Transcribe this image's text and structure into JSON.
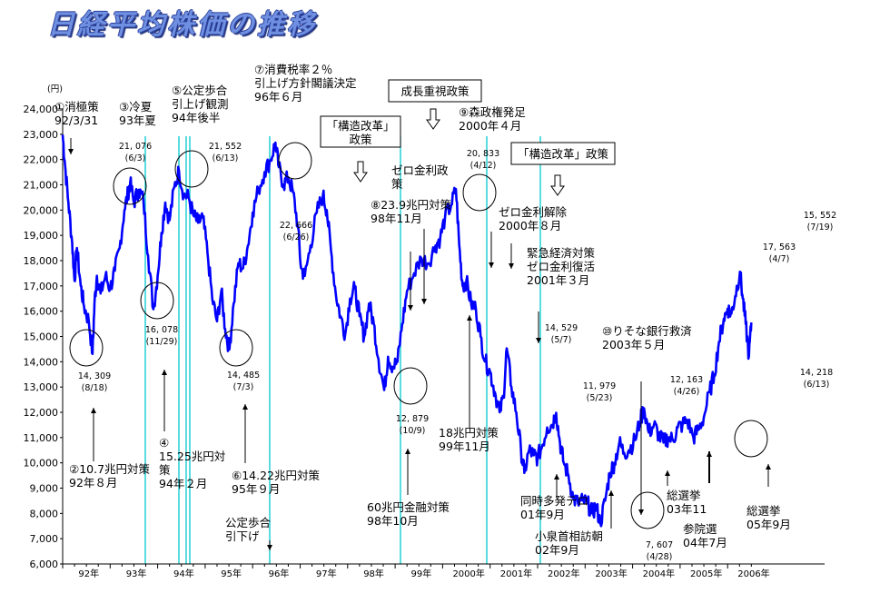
{
  "title": "日経平均株価の推移",
  "chart_data": {
    "type": "line",
    "y_unit": "(円)",
    "ylim": [
      6000,
      24000
    ],
    "y_ticks": [
      "6,000",
      "7,000",
      "8,000",
      "9,000",
      "10,000",
      "11,000",
      "12,000",
      "13,000",
      "14,000",
      "15,000",
      "16,000",
      "17,000",
      "18,000",
      "19,000",
      "20,000",
      "21,000",
      "22,000",
      "23,000",
      "24,000"
    ],
    "x_ticks": [
      "92年",
      "93年",
      "94年",
      "95年",
      "96年",
      "97年",
      "98年",
      "99年",
      "2000年",
      "2001年",
      "2002年",
      "2003年",
      "2004年",
      "2005年",
      "2006年"
    ],
    "line_color": "#0000ff",
    "series": [
      {
        "x": 1992.0,
        "y": 22983
      },
      {
        "x": 1992.05,
        "y": 21800
      },
      {
        "x": 1992.12,
        "y": 20300
      },
      {
        "x": 1992.2,
        "y": 18700
      },
      {
        "x": 1992.25,
        "y": 17200
      },
      {
        "x": 1992.3,
        "y": 18500
      },
      {
        "x": 1992.38,
        "y": 17000
      },
      {
        "x": 1992.45,
        "y": 16200
      },
      {
        "x": 1992.55,
        "y": 15600
      },
      {
        "x": 1992.63,
        "y": 14309
      },
      {
        "x": 1992.67,
        "y": 16300
      },
      {
        "x": 1992.72,
        "y": 17400
      },
      {
        "x": 1992.8,
        "y": 16700
      },
      {
        "x": 1992.9,
        "y": 17400
      },
      {
        "x": 1993.0,
        "y": 16900
      },
      {
        "x": 1993.1,
        "y": 17600
      },
      {
        "x": 1993.2,
        "y": 18500
      },
      {
        "x": 1993.3,
        "y": 20000
      },
      {
        "x": 1993.38,
        "y": 20700
      },
      {
        "x": 1993.42,
        "y": 21076
      },
      {
        "x": 1993.5,
        "y": 20300
      },
      {
        "x": 1993.6,
        "y": 20800
      },
      {
        "x": 1993.7,
        "y": 20400
      },
      {
        "x": 1993.8,
        "y": 18200
      },
      {
        "x": 1993.91,
        "y": 16078
      },
      {
        "x": 1994.0,
        "y": 17400
      },
      {
        "x": 1994.08,
        "y": 19100
      },
      {
        "x": 1994.16,
        "y": 20300
      },
      {
        "x": 1994.25,
        "y": 19600
      },
      {
        "x": 1994.35,
        "y": 20900
      },
      {
        "x": 1994.45,
        "y": 21552
      },
      {
        "x": 1994.55,
        "y": 20600
      },
      {
        "x": 1994.65,
        "y": 20500
      },
      {
        "x": 1994.75,
        "y": 19800
      },
      {
        "x": 1994.85,
        "y": 19500
      },
      {
        "x": 1994.95,
        "y": 19700
      },
      {
        "x": 1995.05,
        "y": 18300
      },
      {
        "x": 1995.15,
        "y": 16500
      },
      {
        "x": 1995.25,
        "y": 15600
      },
      {
        "x": 1995.34,
        "y": 16800
      },
      {
        "x": 1995.42,
        "y": 15300
      },
      {
        "x": 1995.51,
        "y": 14485
      },
      {
        "x": 1995.6,
        "y": 16300
      },
      {
        "x": 1995.7,
        "y": 17900
      },
      {
        "x": 1995.8,
        "y": 17700
      },
      {
        "x": 1995.9,
        "y": 18600
      },
      {
        "x": 1996.0,
        "y": 19900
      },
      {
        "x": 1996.12,
        "y": 20800
      },
      {
        "x": 1996.25,
        "y": 21500
      },
      {
        "x": 1996.38,
        "y": 22000
      },
      {
        "x": 1996.48,
        "y": 22666
      },
      {
        "x": 1996.55,
        "y": 21700
      },
      {
        "x": 1996.65,
        "y": 21000
      },
      {
        "x": 1996.75,
        "y": 21300
      },
      {
        "x": 1996.85,
        "y": 20700
      },
      {
        "x": 1996.95,
        "y": 19400
      },
      {
        "x": 1997.02,
        "y": 17700
      },
      {
        "x": 1997.1,
        "y": 17400
      },
      {
        "x": 1997.22,
        "y": 18600
      },
      {
        "x": 1997.35,
        "y": 19900
      },
      {
        "x": 1997.48,
        "y": 20600
      },
      {
        "x": 1997.56,
        "y": 20000
      },
      {
        "x": 1997.65,
        "y": 18400
      },
      {
        "x": 1997.75,
        "y": 16700
      },
      {
        "x": 1997.85,
        "y": 15800
      },
      {
        "x": 1997.95,
        "y": 15100
      },
      {
        "x": 1998.05,
        "y": 16500
      },
      {
        "x": 1998.15,
        "y": 16900
      },
      {
        "x": 1998.25,
        "y": 15800
      },
      {
        "x": 1998.35,
        "y": 15000
      },
      {
        "x": 1998.45,
        "y": 16300
      },
      {
        "x": 1998.55,
        "y": 15500
      },
      {
        "x": 1998.65,
        "y": 14100
      },
      {
        "x": 1998.77,
        "y": 12879
      },
      {
        "x": 1998.85,
        "y": 14200
      },
      {
        "x": 1998.95,
        "y": 13800
      },
      {
        "x": 1999.05,
        "y": 14000
      },
      {
        "x": 1999.15,
        "y": 15500
      },
      {
        "x": 1999.25,
        "y": 16800
      },
      {
        "x": 1999.4,
        "y": 17500
      },
      {
        "x": 1999.55,
        "y": 18100
      },
      {
        "x": 1999.7,
        "y": 17900
      },
      {
        "x": 1999.85,
        "y": 18600
      },
      {
        "x": 1999.95,
        "y": 18900
      },
      {
        "x": 2000.05,
        "y": 19700
      },
      {
        "x": 2000.18,
        "y": 20200
      },
      {
        "x": 2000.28,
        "y": 20833
      },
      {
        "x": 2000.35,
        "y": 18600
      },
      {
        "x": 2000.42,
        "y": 17000
      },
      {
        "x": 2000.5,
        "y": 17200
      },
      {
        "x": 2000.6,
        "y": 16300
      },
      {
        "x": 2000.7,
        "y": 16100
      },
      {
        "x": 2000.8,
        "y": 15000
      },
      {
        "x": 2000.9,
        "y": 14000
      },
      {
        "x": 2001.0,
        "y": 13600
      },
      {
        "x": 2001.1,
        "y": 12800
      },
      {
        "x": 2001.2,
        "y": 12000
      },
      {
        "x": 2001.28,
        "y": 12600
      },
      {
        "x": 2001.35,
        "y": 14529
      },
      {
        "x": 2001.45,
        "y": 13000
      },
      {
        "x": 2001.55,
        "y": 12000
      },
      {
        "x": 2001.65,
        "y": 10500
      },
      {
        "x": 2001.72,
        "y": 9600
      },
      {
        "x": 2001.82,
        "y": 10500
      },
      {
        "x": 2001.92,
        "y": 10300
      },
      {
        "x": 2002.0,
        "y": 10200
      },
      {
        "x": 2002.1,
        "y": 10700
      },
      {
        "x": 2002.2,
        "y": 11400
      },
      {
        "x": 2002.3,
        "y": 11500
      },
      {
        "x": 2002.39,
        "y": 11979
      },
      {
        "x": 2002.47,
        "y": 10800
      },
      {
        "x": 2002.55,
        "y": 10000
      },
      {
        "x": 2002.65,
        "y": 9500
      },
      {
        "x": 2002.75,
        "y": 8600
      },
      {
        "x": 2002.85,
        "y": 8400
      },
      {
        "x": 2002.95,
        "y": 8500
      },
      {
        "x": 2003.05,
        "y": 8400
      },
      {
        "x": 2003.15,
        "y": 8000
      },
      {
        "x": 2003.23,
        "y": 8300
      },
      {
        "x": 2003.32,
        "y": 7607
      },
      {
        "x": 2003.42,
        "y": 8500
      },
      {
        "x": 2003.52,
        "y": 9600
      },
      {
        "x": 2003.62,
        "y": 10000
      },
      {
        "x": 2003.72,
        "y": 10800
      },
      {
        "x": 2003.82,
        "y": 10400
      },
      {
        "x": 2003.92,
        "y": 10500
      },
      {
        "x": 2004.05,
        "y": 10900
      },
      {
        "x": 2004.15,
        "y": 11600
      },
      {
        "x": 2004.24,
        "y": 12163
      },
      {
        "x": 2004.34,
        "y": 11200
      },
      {
        "x": 2004.45,
        "y": 11500
      },
      {
        "x": 2004.55,
        "y": 11100
      },
      {
        "x": 2004.65,
        "y": 10800
      },
      {
        "x": 2004.75,
        "y": 11000
      },
      {
        "x": 2004.85,
        "y": 10900
      },
      {
        "x": 2004.95,
        "y": 11400
      },
      {
        "x": 2005.05,
        "y": 11500
      },
      {
        "x": 2005.15,
        "y": 11700
      },
      {
        "x": 2005.28,
        "y": 11000
      },
      {
        "x": 2005.38,
        "y": 11300
      },
      {
        "x": 2005.5,
        "y": 11800
      },
      {
        "x": 2005.62,
        "y": 12800
      },
      {
        "x": 2005.72,
        "y": 13500
      },
      {
        "x": 2005.82,
        "y": 14800
      },
      {
        "x": 2005.92,
        "y": 15700
      },
      {
        "x": 2006.0,
        "y": 16100
      },
      {
        "x": 2006.08,
        "y": 15900
      },
      {
        "x": 2006.16,
        "y": 16600
      },
      {
        "x": 2006.26,
        "y": 17563
      },
      {
        "x": 2006.32,
        "y": 16500
      },
      {
        "x": 2006.38,
        "y": 15500
      },
      {
        "x": 2006.45,
        "y": 14218
      },
      {
        "x": 2006.5,
        "y": 15552
      }
    ],
    "value_labels": [
      {
        "value": "14, 309",
        "date": "(8/18)"
      },
      {
        "value": "21, 076",
        "date": "(6/3)"
      },
      {
        "value": "16, 078",
        "date": "(11/29)"
      },
      {
        "value": "21, 552",
        "date": "(6/13)"
      },
      {
        "value": "14, 485",
        "date": "(7/3)"
      },
      {
        "value": "22, 666",
        "date": "(6/26)"
      },
      {
        "value": "12, 879",
        "date": "(10/9)"
      },
      {
        "value": "20, 833",
        "date": "(4/12)"
      },
      {
        "value": "14, 529",
        "date": "(5/7)"
      },
      {
        "value": "11, 979",
        "date": "(5/23)"
      },
      {
        "value": "7, 607",
        "date": "(4/28)"
      },
      {
        "value": "12, 163",
        "date": "(4/26)"
      },
      {
        "value": "17, 563",
        "date": "(4/7)"
      },
      {
        "value": "15, 552",
        "date": "(7/19)"
      },
      {
        "value": "14, 218",
        "date": "(6/13)"
      }
    ],
    "annotations": {
      "e1": [
        "①消極策",
        "92/3/31"
      ],
      "e2": [
        "②10.7兆円対策",
        "92年８月"
      ],
      "e3": [
        "③冷夏",
        "93年夏"
      ],
      "e4": [
        "④",
        "15.25兆円対",
        "策",
        "94年２月"
      ],
      "e5": [
        "⑤公定歩合",
        "引上げ観測",
        "94年後半"
      ],
      "e6": [
        "⑥14.22兆円対策",
        "95年９月"
      ],
      "e6b": [
        "公定歩合",
        "引下げ"
      ],
      "e7": [
        "⑦消費税率２％",
        "引上げ方針閣議決定",
        "96年６月"
      ],
      "e8": [
        "⑧23.9兆円対策",
        "98年11月"
      ],
      "e8b": [
        "ゼロ金利政",
        "策"
      ],
      "e9": [
        "⑨森政権発足",
        "2000年４月"
      ],
      "e10": [
        "⑩りそな銀行救済",
        "2003年５月"
      ],
      "e60": [
        "60兆円金融対策",
        "98年10月"
      ],
      "e18": [
        "18兆円対策",
        "99年11月"
      ],
      "ezk": [
        "ゼロ金利解除",
        "2000年８月"
      ],
      "ekk": [
        "緊急経済対策",
        "ゼロ金利復活",
        "2001年３月"
      ],
      "ete": [
        "同時多発テロ",
        "01年9月"
      ],
      "ekz": [
        "小泉首相訪朝",
        "02年9月"
      ],
      "es1": [
        "総選挙",
        "03年11"
      ],
      "esa": [
        "参院選",
        "04年7月"
      ],
      "es2": [
        "総選挙",
        "05年9月"
      ]
    },
    "boxes": {
      "kozo1": [
        "「構造改革」",
        "政策"
      ],
      "seicho": [
        "成長重視政策"
      ],
      "kozo2": [
        "「構造改革」政策"
      ]
    }
  }
}
